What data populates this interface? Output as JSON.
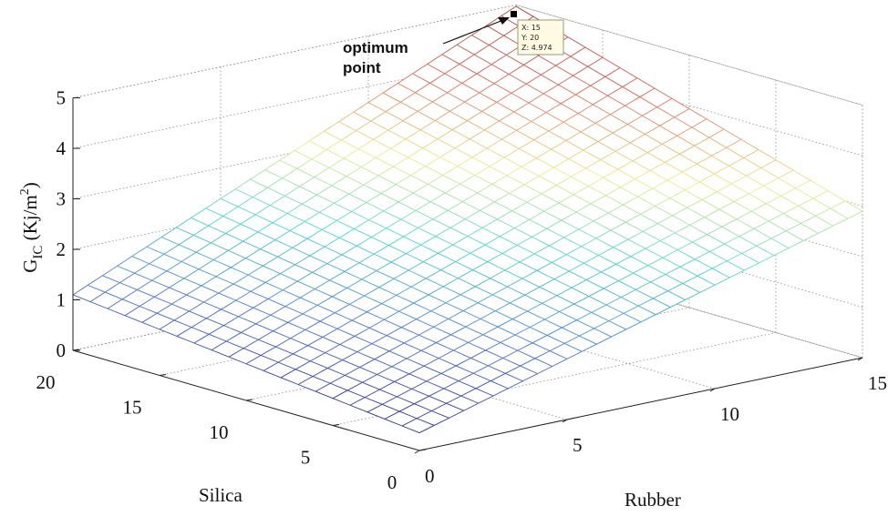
{
  "chart_data": {
    "type": "surface",
    "x": {
      "label": "Rubber",
      "range": [
        0,
        15
      ],
      "ticks": [
        0,
        5,
        10,
        15
      ],
      "grid_values": [
        0,
        0.5,
        1,
        1.5,
        2,
        2.5,
        3,
        3.5,
        4,
        4.5,
        5,
        5.5,
        6,
        6.5,
        7,
        7.5,
        8,
        8.5,
        9,
        9.5,
        10,
        10.5,
        11,
        11.5,
        12,
        12.5,
        13,
        13.5,
        14,
        14.5,
        15
      ]
    },
    "y": {
      "label": "Silica",
      "range": [
        0,
        20
      ],
      "ticks": [
        0,
        5,
        10,
        15,
        20
      ],
      "grid_values": [
        0,
        1,
        2,
        3,
        4,
        5,
        6,
        7,
        8,
        9,
        10,
        11,
        12,
        13,
        14,
        15,
        16,
        17,
        18,
        19,
        20
      ]
    },
    "z": {
      "label_main": "G",
      "label_sub": "IC",
      "label_units": " (Kj/m",
      "label_sup": "2",
      "label_close": ")",
      "range": [
        0,
        5
      ],
      "ticks": [
        0,
        1,
        2,
        3,
        4,
        5
      ]
    },
    "surface_model": {
      "description_values": {
        "z_at_x0_y0": 0.35,
        "z_at_x0_y20": 1.1,
        "z_at_x15_y0": 2.9,
        "z_at_x15_y20": 4.974
      }
    },
    "grid": true,
    "colormap": [
      "#2a2a8c",
      "#4a7ad0",
      "#49d6d6",
      "#f0ee86",
      "#d86a5a",
      "#a84040"
    ],
    "datatip": {
      "x_text": "X: 15",
      "y_text": "Y: 20",
      "z_text": "Z: 4.974"
    },
    "annotation": {
      "line1": "optimum",
      "line2": "point"
    }
  }
}
